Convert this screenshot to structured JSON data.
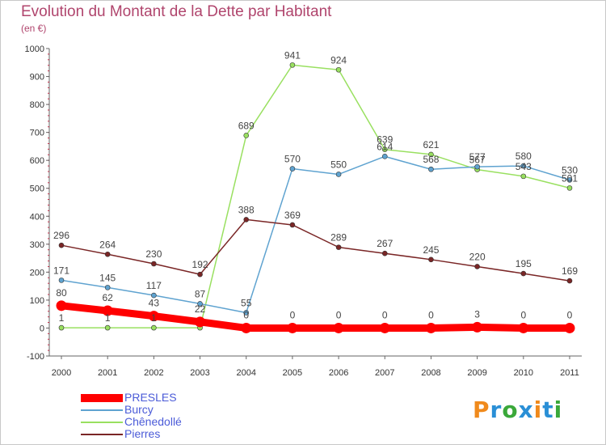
{
  "title": "Evolution du Montant de la Dette par Habitant",
  "subtitle": "(en €)",
  "logo": {
    "text": "Proxiti",
    "letter_colors": [
      "#f08a1c",
      "#2a8fd6",
      "#3aa83a",
      "#2a8fd6",
      "#f08a1c",
      "#2a8fd6",
      "#3aa83a"
    ]
  },
  "chart_data": {
    "type": "line",
    "categories": [
      "2000",
      "2001",
      "2002",
      "2003",
      "2004",
      "2005",
      "2006",
      "2007",
      "2008",
      "2009",
      "2010",
      "2011"
    ],
    "ylim": [
      -100,
      1000
    ],
    "yticks": [
      "-100",
      "0",
      "100",
      "200",
      "300",
      "400",
      "500",
      "600",
      "700",
      "800",
      "900",
      "1000"
    ],
    "grid": false,
    "legend_position": "bottom-left",
    "series": [
      {
        "name": "PRESLES",
        "color": "#ff0000",
        "values": [
          80,
          62,
          43,
          22,
          0,
          0,
          0,
          0,
          0,
          3,
          0,
          0
        ],
        "labels": [
          "80",
          "62",
          "43",
          "22",
          "0",
          "0",
          "0",
          "0",
          "0",
          "3",
          "0",
          "0"
        ]
      },
      {
        "name": "Burcy",
        "color": "#5fa3d0",
        "values": [
          171,
          145,
          117,
          87,
          55,
          570,
          550,
          614,
          568,
          577,
          580,
          530
        ],
        "labels": [
          "171",
          "145",
          "117",
          "87",
          "55",
          "570",
          "550",
          "614",
          "568",
          "577",
          "580",
          "530"
        ]
      },
      {
        "name": "Chênedollé",
        "color": "#99e060",
        "values": [
          1,
          1,
          1,
          1,
          689,
          941,
          924,
          639,
          621,
          567,
          543,
          501
        ],
        "labels": [
          "1",
          "1",
          "1",
          "",
          "689",
          "941",
          "924",
          "639",
          "621",
          "567",
          "543",
          "501"
        ]
      },
      {
        "name": "Pierres",
        "color": "#7a2626",
        "values": [
          296,
          264,
          230,
          192,
          388,
          369,
          289,
          267,
          245,
          220,
          195,
          169
        ],
        "labels": [
          "296",
          "264",
          "230",
          "192",
          "388",
          "369",
          "289",
          "267",
          "245",
          "220",
          "195",
          "169"
        ]
      }
    ]
  }
}
